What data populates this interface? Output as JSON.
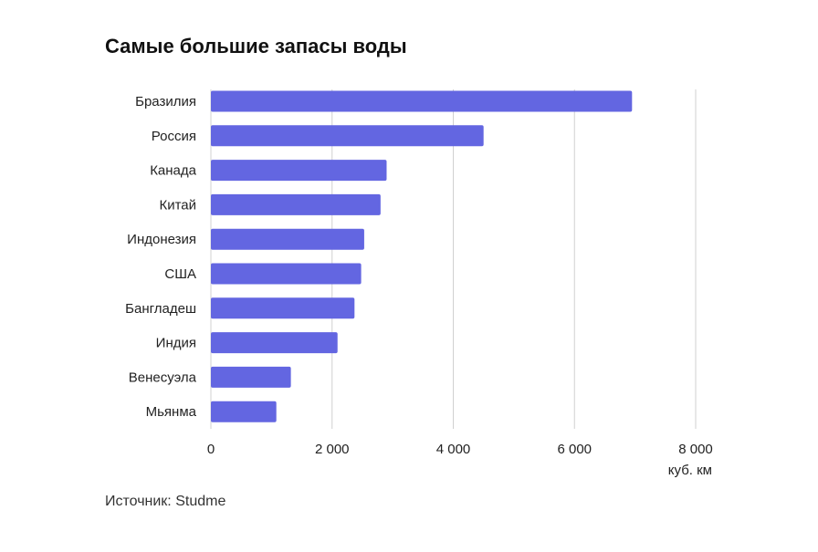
{
  "chart_data": {
    "type": "bar",
    "orientation": "horizontal",
    "title": "Самые большие запасы воды",
    "categories": [
      "Бразилия",
      "Россия",
      "Канада",
      "Китай",
      "Индонезия",
      "США",
      "Бангладеш",
      "Индия",
      "Венесуэла",
      "Мьянма"
    ],
    "values": [
      6950,
      4500,
      2900,
      2800,
      2530,
      2480,
      2370,
      2090,
      1320,
      1080
    ],
    "xlabel": "куб. км",
    "ylabel": "",
    "xlim": [
      0,
      8000
    ],
    "ticks": [
      0,
      2000,
      4000,
      6000,
      8000
    ],
    "tick_labels": [
      "0",
      "2 000",
      "4 000",
      "6 000",
      "8 000"
    ],
    "grid": true,
    "bar_color": "#6366e1",
    "grid_color": "#d0d0d0"
  },
  "source": "Источник: Studme"
}
